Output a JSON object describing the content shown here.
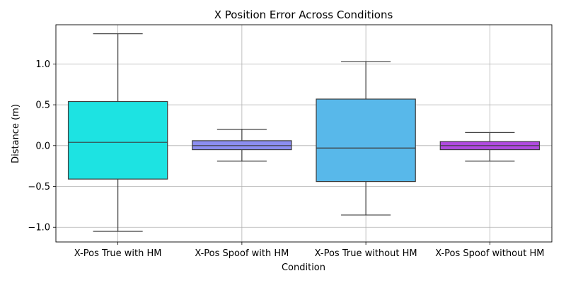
{
  "chart_data": {
    "type": "box",
    "title": "X Position Error Across Conditions",
    "xlabel": "Condition",
    "ylabel": "Distance (m)",
    "ylim": [
      -1.18,
      1.48
    ],
    "yticks": [
      -1.0,
      -0.5,
      0.0,
      0.5,
      1.0
    ],
    "ytick_labels": [
      "−1.0",
      "−0.5",
      "0.0",
      "0.5",
      "1.0"
    ],
    "grid": true,
    "categories": [
      "X-Pos True with HM",
      "X-Pos Spoof with HM",
      "X-Pos True without HM",
      "X-Pos Spoof without HM"
    ],
    "boxes": [
      {
        "category": "X-Pos True with HM",
        "whisker_low": -1.05,
        "q1": -0.41,
        "median": 0.04,
        "q3": 0.54,
        "whisker_high": 1.37,
        "color": "#1de3e2"
      },
      {
        "category": "X-Pos Spoof with HM",
        "whisker_low": -0.19,
        "q1": -0.05,
        "median": 0.0,
        "q3": 0.06,
        "whisker_high": 0.2,
        "color": "#8c8ef0"
      },
      {
        "category": "X-Pos True without HM",
        "whisker_low": -0.85,
        "q1": -0.44,
        "median": -0.03,
        "q3": 0.57,
        "whisker_high": 1.03,
        "color": "#58b8ea"
      },
      {
        "category": "X-Pos Spoof without HM",
        "whisker_low": -0.19,
        "q1": -0.05,
        "median": 0.0,
        "q3": 0.05,
        "whisker_high": 0.16,
        "color": "#b04ae0"
      }
    ]
  }
}
